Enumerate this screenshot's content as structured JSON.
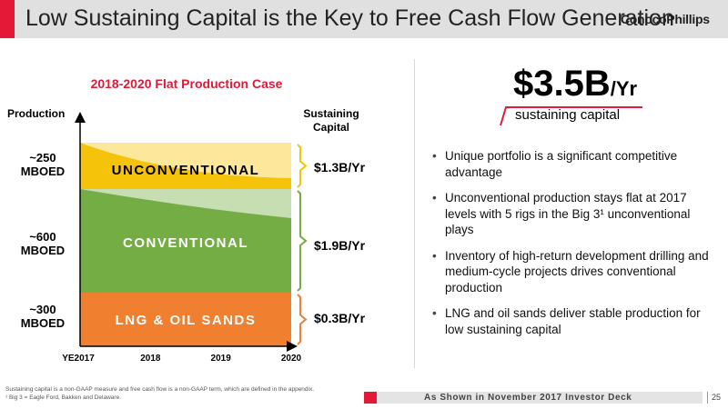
{
  "header": {
    "title": "Low Sustaining Capital is the Key to Free Cash Flow Generation",
    "logo": "ConocoPhillips"
  },
  "left": {
    "case_title": "2018-2020 Flat Production Case",
    "production_header": "Production",
    "sustaining_header_line1": "Sustaining",
    "sustaining_header_line2": "Capital",
    "prod_labels": [
      {
        "l1": "~250",
        "l2": "MBOED"
      },
      {
        "l1": "~600",
        "l2": "MBOED"
      },
      {
        "l1": "~300",
        "l2": "MBOED"
      }
    ],
    "cap_labels": [
      "$1.3B/Yr",
      "$1.9B/Yr",
      "$0.3B/Yr"
    ]
  },
  "chart_data": {
    "type": "area",
    "title": "2018-2020 Flat Production Case",
    "ylabel": "Production",
    "categories": [
      "YE2017",
      "2018",
      "2019",
      "2020"
    ],
    "series": [
      {
        "name": "LNG & OIL SANDS",
        "production": "~300 MBOED",
        "sustaining_capital": "$0.3B/Yr",
        "color": "#f07f30",
        "base_color": "#f07f30"
      },
      {
        "name": "CONVENTIONAL",
        "production": "~600 MBOED",
        "sustaining_capital": "$1.9B/Yr",
        "color": "#74ad44",
        "new_color": "#c6deb1"
      },
      {
        "name": "UNCONVENTIONAL",
        "production": "~250 MBOED",
        "sustaining_capital": "$1.3B/Yr",
        "color": "#f5c30a",
        "new_color": "#fde79b"
      }
    ]
  },
  "right": {
    "big_number": "$3.5B",
    "big_unit": "/Yr",
    "subtitle": "sustaining capital",
    "bullets": [
      "Unique portfolio is a significant competitive advantage",
      "Unconventional production stays flat at 2017 levels with 5 rigs in the Big 3¹ unconventional plays",
      "Inventory of high-return development drilling and medium-cycle projects drives conventional production",
      "LNG and oil sands deliver stable production for low sustaining capital"
    ]
  },
  "footer": {
    "note1": "Sustaining capital is a non-GAAP measure and free cash flow is a non-GAAP term, which are defined in the appendix.",
    "note2": "¹ Big 3 = Eagle Ford, Bakken and Delaware.",
    "deck": "As Shown in November 2017 Investor Deck",
    "page": "25"
  },
  "colors": {
    "accent_red": "#e31937",
    "header_bg": "#e0e0e0"
  }
}
